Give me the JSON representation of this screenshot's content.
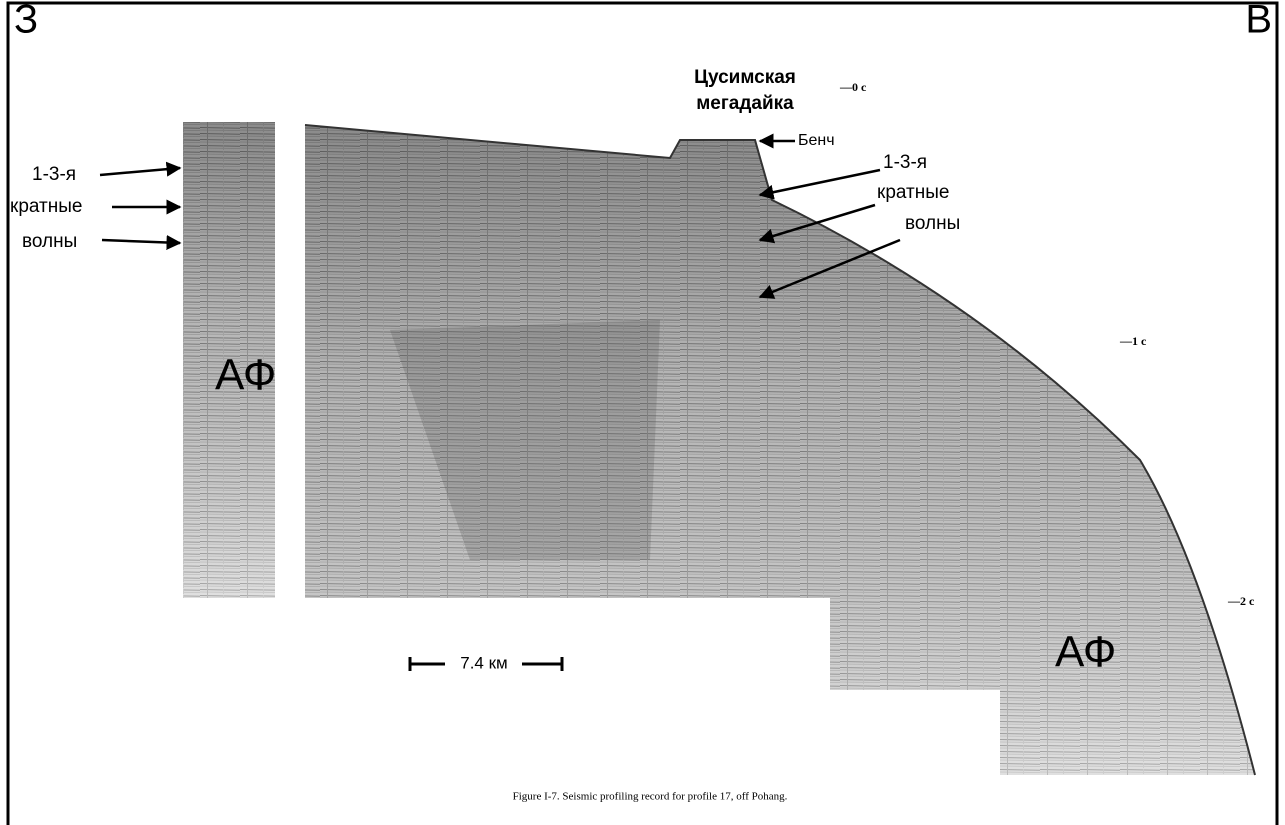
{
  "corner_labels": {
    "left": "З",
    "right": "В"
  },
  "structure": {
    "line1": "Цусимская",
    "line2": "мегадайка"
  },
  "bench": "Бенч",
  "time_marks": [
    "—0 с",
    "—1 с",
    "—2 с"
  ],
  "multiples_left": [
    "1-3-я",
    "кратные",
    "волны"
  ],
  "multiples_right": [
    "1-3-я",
    "кратные",
    "волны"
  ],
  "basement": [
    "АФ",
    "АФ"
  ],
  "scale_bar": "7.4 км",
  "caption": "Figure I-7.   Seismic profiling record for profile 17, off Pohang."
}
